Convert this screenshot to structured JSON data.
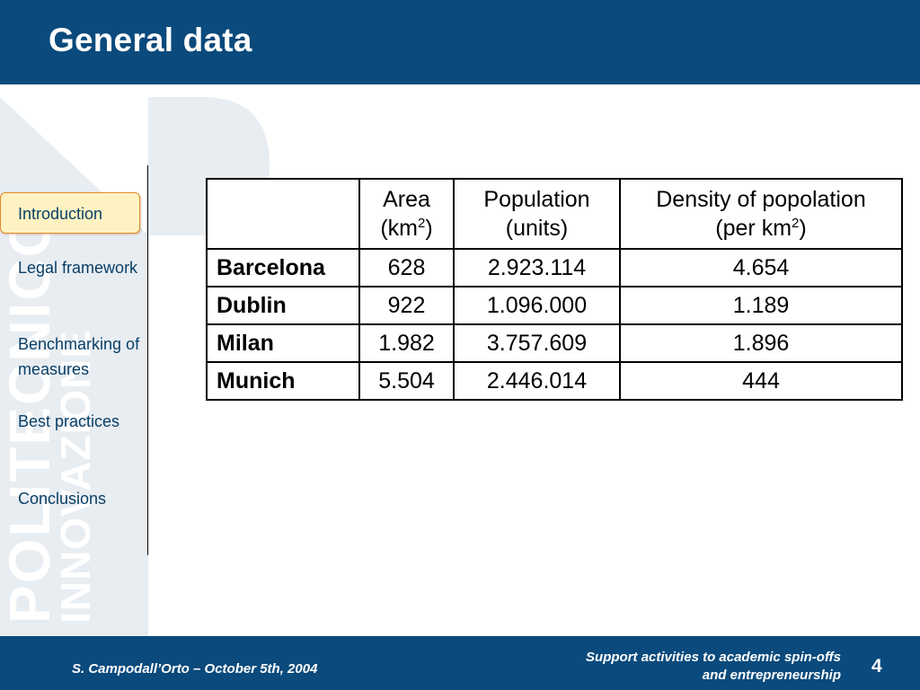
{
  "slide": {
    "title": "General data",
    "page_number": "4"
  },
  "sidebar": {
    "items": [
      {
        "label": "Introduction",
        "active": true
      },
      {
        "label": "Legal framework",
        "active": false
      },
      {
        "label": "Benchmarking of measures",
        "active": false
      },
      {
        "label": "Best practices",
        "active": false
      },
      {
        "label": "Conclusions",
        "active": false
      }
    ]
  },
  "table": {
    "headers": {
      "area": "Area",
      "area_unit_prefix": "(km",
      "area_unit_sup": "2",
      "area_unit_suffix": ")",
      "population": "Population",
      "population_unit": "(units)",
      "density": "Density of popolation",
      "density_unit_prefix": "(per km",
      "density_unit_sup": "2",
      "density_unit_suffix": ")"
    },
    "rows": [
      {
        "city": "Barcelona",
        "area": "628",
        "population": "2.923.114",
        "density": "4.654"
      },
      {
        "city": "Dublin",
        "area": "922",
        "population": "1.096.000",
        "density": "1.189"
      },
      {
        "city": "Milan",
        "area": "1.982",
        "population": "3.757.609",
        "density": "1.896"
      },
      {
        "city": "Munich",
        "area": "5.504",
        "population": "2.446.014",
        "density": "444"
      }
    ]
  },
  "footer": {
    "author": "S. Campodall’Orto – October 5th, 2004",
    "subtitle_line1": "Support activities to academic spin-offs",
    "subtitle_line2": "and entrepreneurship"
  },
  "watermark": {
    "text_1": "POLITECNICO",
    "text_2": "INNOVAZIONE",
    "letter": "P"
  },
  "colors": {
    "brand_blue": "#0a4a7c",
    "active_fill": "#fff2c2",
    "active_border": "#e38a2c",
    "watermark": "#e6ebf1"
  }
}
